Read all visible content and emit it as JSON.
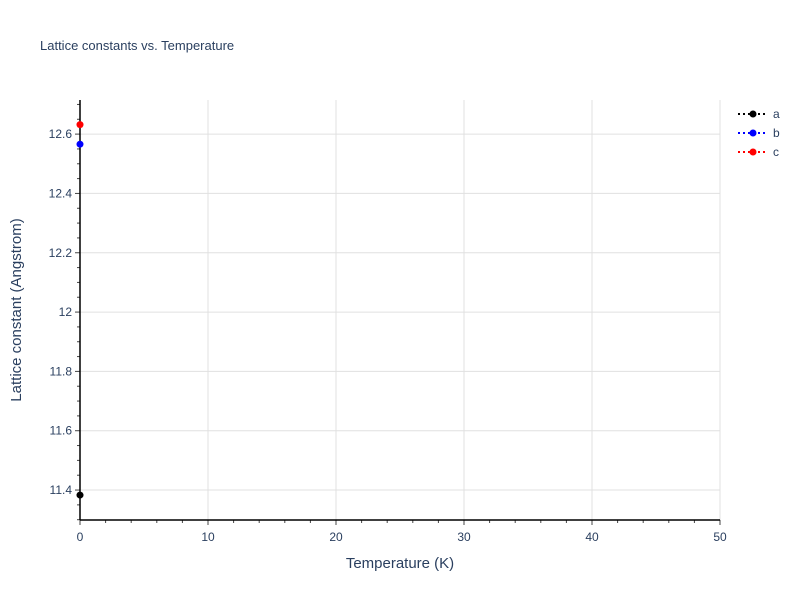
{
  "chart_data": {
    "type": "scatter",
    "title": "Lattice constants vs. Temperature",
    "xlabel": "Temperature (K)",
    "ylabel": "Lattice constant (Angstrom)",
    "xlim": [
      0,
      50
    ],
    "ylim": [
      11.299,
      12.715
    ],
    "xticks": [
      0,
      10,
      20,
      30,
      40,
      50
    ],
    "xtick_labels": [
      "0",
      "10",
      "20",
      "30",
      "40",
      "50"
    ],
    "yticks": [
      11.4,
      11.6,
      11.8,
      12,
      12.2,
      12.4,
      12.6
    ],
    "ytick_labels": [
      "11.4",
      "11.6",
      "11.8",
      "12",
      "12.2",
      "12.4",
      "12.6"
    ],
    "grid": true,
    "legend_placement": "top-right",
    "series": [
      {
        "name": "a",
        "color": "#000000",
        "x": [
          0
        ],
        "y": [
          11.383
        ]
      },
      {
        "name": "b",
        "color": "#0000ff",
        "x": [
          0
        ],
        "y": [
          12.566
        ]
      },
      {
        "name": "c",
        "color": "#ff0000",
        "x": [
          0
        ],
        "y": [
          12.632
        ]
      }
    ]
  }
}
